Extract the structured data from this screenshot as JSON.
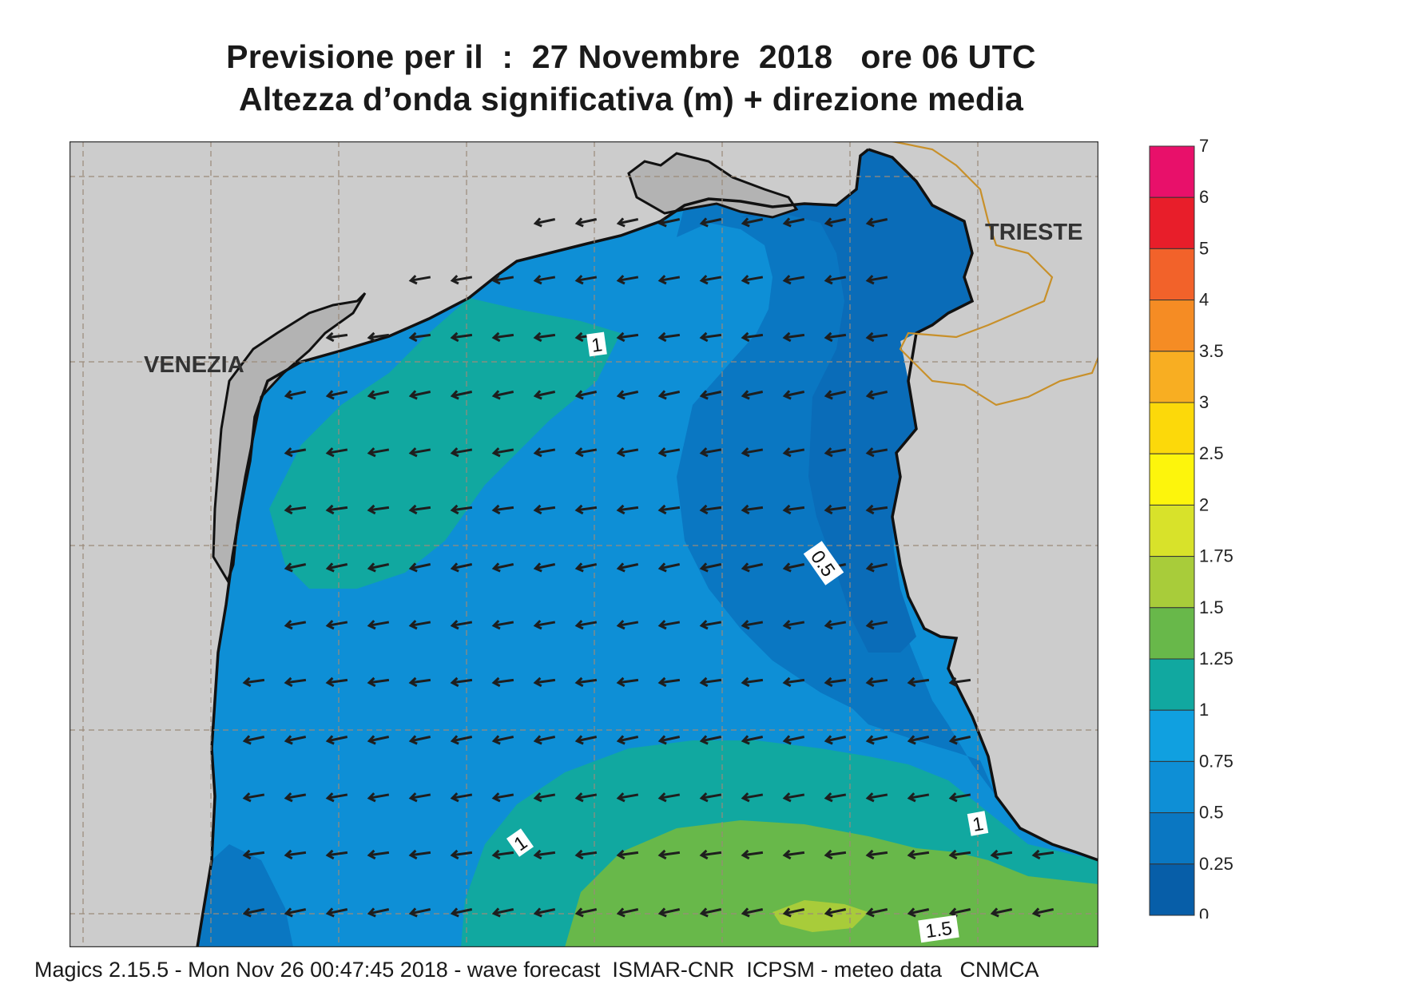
{
  "title": {
    "line1": "Previsione per il  :  27 Novembre  2018   ore 06 UTC",
    "line2": "Altezza d’onda significativa (m) + direzione media"
  },
  "footer": "Magics 2.15.5 - Mon Nov 26 00:47:45 2018 - wave forecast  ISMAR-CNR  ICPSM - meteo data   CNMCA",
  "map": {
    "cities": {
      "venezia": "VENEZIA",
      "trieste": "TRIESTE"
    },
    "contour_labels": {
      "c1_north": "1",
      "c05": "0.5",
      "c1_south": "1",
      "c1_east": "1",
      "c15": "1.5"
    },
    "arrow_direction": "towards WSW",
    "colors": {
      "land": "#cccccc",
      "coast": "#111111",
      "border": "#c8902a",
      "grid": "#9a8a7a",
      "arrow": "#1e1e1e"
    }
  },
  "legend": {
    "labels": [
      "7",
      "6",
      "5",
      "4",
      "3.5",
      "3",
      "2.5",
      "2",
      "1.75",
      "1.5",
      "1.25",
      "1",
      "0.75",
      "0.5",
      "0.25",
      "0"
    ],
    "colors": [
      "#e8106a",
      "#e81e2a",
      "#f2622a",
      "#f58c24",
      "#f8ae22",
      "#fcd90a",
      "#fdf50c",
      "#d8e22a",
      "#a8cc3a",
      "#68b84a",
      "#11a8a0",
      "#10a0e0",
      "#0e8fd6",
      "#0a77c2",
      "#075ea8"
    ]
  }
}
